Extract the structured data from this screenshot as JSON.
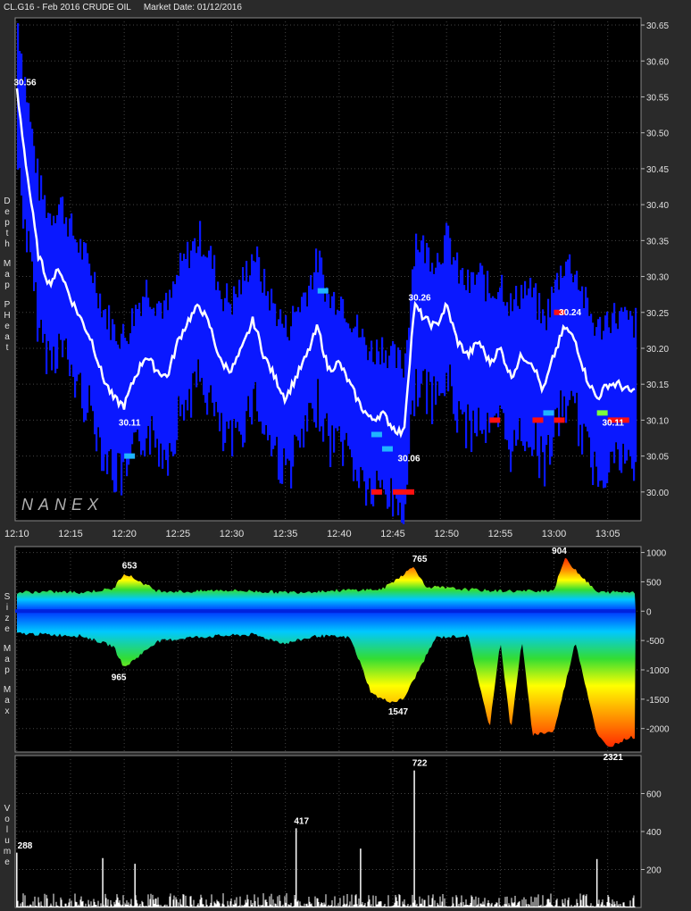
{
  "header": {
    "symbol": "CL.G16 - Feb 2016 CRUDE OIL",
    "market_date": "Market Date: 01/12/2016"
  },
  "watermark": "NANEX",
  "panels": {
    "price_label": [
      "Depth",
      "Map",
      "PHeat"
    ],
    "size_label": [
      "Size",
      "Map",
      "Max"
    ],
    "volume_label": [
      "Volume"
    ]
  },
  "chart_data": [
    {
      "type": "line",
      "panel": "price",
      "ylim": [
        29.96,
        30.66
      ],
      "yticks": [
        "30.65",
        "30.60",
        "30.55",
        "30.50",
        "30.45",
        "30.40",
        "30.35",
        "30.30",
        "30.25",
        "30.20",
        "30.15",
        "30.10",
        "30.05",
        "30.00"
      ],
      "xticks": [
        "12:10",
        "12:15",
        "12:20",
        "12:25",
        "12:30",
        "12:35",
        "12:40",
        "12:45",
        "12:50",
        "12:55",
        "13:00",
        "13:05"
      ],
      "series": [
        {
          "x": [
            "12:10",
            "12:11",
            "12:12",
            "12:13",
            "12:14",
            "12:15",
            "12:16",
            "12:17",
            "12:18",
            "12:19",
            "12:20",
            "12:21",
            "12:22",
            "12:23",
            "12:24",
            "12:25",
            "12:26",
            "12:27",
            "12:28",
            "12:29",
            "12:30",
            "12:31",
            "12:32",
            "12:33",
            "12:34",
            "12:35",
            "12:36",
            "12:37",
            "12:38",
            "12:39",
            "12:40",
            "12:41",
            "12:42",
            "12:43",
            "12:44",
            "12:45",
            "12:46",
            "12:47",
            "12:48",
            "12:49",
            "12:50",
            "12:51",
            "12:52",
            "12:53",
            "12:54",
            "12:55",
            "12:56",
            "12:57",
            "12:58",
            "12:59",
            "13:00",
            "13:01",
            "13:02",
            "13:03",
            "13:04",
            "13:05",
            "13:06",
            "13:07"
          ],
          "values": [
            30.56,
            30.44,
            30.33,
            30.29,
            30.31,
            30.27,
            30.24,
            30.21,
            30.16,
            30.13,
            30.12,
            30.16,
            30.19,
            30.17,
            30.16,
            30.21,
            30.24,
            30.26,
            30.23,
            30.18,
            30.17,
            30.2,
            30.24,
            30.19,
            30.16,
            30.13,
            30.16,
            30.19,
            30.23,
            30.17,
            30.18,
            30.15,
            30.12,
            30.1,
            30.11,
            30.09,
            30.08,
            30.26,
            30.24,
            30.23,
            30.26,
            30.21,
            30.19,
            30.21,
            30.18,
            30.2,
            30.16,
            30.19,
            30.18,
            30.14,
            30.19,
            30.23,
            30.21,
            30.16,
            30.13,
            30.15,
            30.15,
            30.14
          ]
        }
      ],
      "annotations": [
        {
          "label": "30.56",
          "x": "12:10",
          "y": 30.56
        },
        {
          "label": "30.11",
          "x": "12:20",
          "y": 30.11
        },
        {
          "label": "30.26",
          "x": "12:47",
          "y": 30.26
        },
        {
          "label": "30.06",
          "x": "12:46",
          "y": 30.06
        },
        {
          "label": "30.24",
          "x": "13:01",
          "y": 30.24
        },
        {
          "label": "30.11",
          "x": "13:05",
          "y": 30.11
        }
      ]
    },
    {
      "type": "area",
      "panel": "size",
      "ylim": [
        -2400,
        1100
      ],
      "yticks": [
        "1000",
        "500",
        "0",
        "-500",
        "-1000",
        "-1500",
        "-2000"
      ],
      "series": [
        {
          "name": "bid",
          "x": [
            "12:10",
            "12:13",
            "12:16",
            "12:19",
            "12:20",
            "12:23",
            "12:26",
            "12:29",
            "12:32",
            "12:35",
            "12:38",
            "12:41",
            "12:44",
            "12:47",
            "12:48",
            "12:51",
            "12:54",
            "12:57",
            "13:00",
            "13:01",
            "13:04",
            "13:07"
          ],
          "values": [
            320,
            330,
            320,
            380,
            653,
            350,
            330,
            360,
            340,
            320,
            340,
            360,
            370,
            765,
            420,
            380,
            350,
            340,
            360,
            904,
            320,
            330
          ]
        },
        {
          "name": "ask",
          "x": [
            "12:10",
            "12:13",
            "12:16",
            "12:19",
            "12:20",
            "12:23",
            "12:26",
            "12:29",
            "12:32",
            "12:35",
            "12:38",
            "12:41",
            "12:42",
            "12:43",
            "12:44",
            "12:45",
            "12:46",
            "12:49",
            "12:52",
            "12:54",
            "12:55",
            "12:56",
            "12:57",
            "12:58",
            "13:00",
            "13:02",
            "13:04",
            "13:05",
            "13:07"
          ],
          "values": [
            -380,
            -400,
            -420,
            -600,
            -965,
            -520,
            -450,
            -420,
            -400,
            -550,
            -420,
            -450,
            -900,
            -1400,
            -1500,
            -1547,
            -1500,
            -450,
            -420,
            -2000,
            -500,
            -2050,
            -480,
            -2100,
            -2050,
            -520,
            -2100,
            -2321,
            -2150
          ]
        }
      ],
      "annotations": [
        {
          "label": "653",
          "x": "12:20",
          "y": 653
        },
        {
          "label": "965",
          "x": "12:19",
          "y": -965
        },
        {
          "label": "765",
          "x": "12:47",
          "y": 765
        },
        {
          "label": "1547",
          "x": "12:45",
          "y": -1547
        },
        {
          "label": "904",
          "x": "13:00",
          "y": 904
        },
        {
          "label": "2321",
          "x": "13:05",
          "y": -2321
        }
      ]
    },
    {
      "type": "bar",
      "panel": "volume",
      "ylim": [
        0,
        800
      ],
      "yticks": [
        "600",
        "400",
        "200"
      ],
      "spikes": [
        {
          "x": "12:10",
          "value": 288
        },
        {
          "x": "12:18",
          "value": 260
        },
        {
          "x": "12:21",
          "value": 230
        },
        {
          "x": "12:36",
          "value": 417
        },
        {
          "x": "12:42",
          "value": 310
        },
        {
          "x": "12:47",
          "value": 722
        },
        {
          "x": "13:04",
          "value": 255
        }
      ],
      "annotations": [
        {
          "label": "288",
          "x": "12:10",
          "y": 288
        },
        {
          "label": "417",
          "x": "12:36",
          "y": 417
        },
        {
          "label": "722",
          "x": "12:47",
          "y": 722
        }
      ]
    }
  ]
}
